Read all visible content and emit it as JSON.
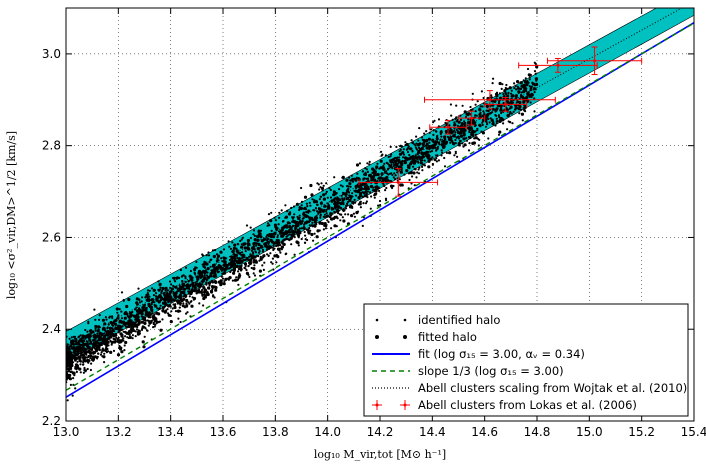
{
  "chart_data": {
    "type": "scatter",
    "xlabel": "log₁₀ M_vir,tot [M⊙ h⁻¹]",
    "ylabel": "log₁₀ <σ²_vir,DM>^1/2 [km/s]",
    "xlim": [
      13.0,
      15.4
    ],
    "ylim": [
      2.2,
      3.1
    ],
    "xticks": [
      "13.0",
      "13.2",
      "13.4",
      "13.6",
      "13.8",
      "14.0",
      "14.2",
      "14.4",
      "14.6",
      "14.8",
      "15.0",
      "15.2",
      "15.4"
    ],
    "yticks": [
      "2.2",
      "2.4",
      "2.6",
      "2.8",
      "3.0"
    ],
    "grid": true,
    "legend_position": "bottom-right",
    "colors": {
      "points": "#000000",
      "fit": "#0000ff",
      "slope": "#008000",
      "band": "#00c0c0",
      "abell": "#ff0000"
    },
    "series": [
      {
        "name": "identified halo",
        "kind": "scatter",
        "marker": "small-dot",
        "relation": {
          "x_start": 13.0,
          "x_end": 14.8,
          "y_at_start": 2.33,
          "slope": 0.3333,
          "scatter_dex": 0.025,
          "count": 2200
        }
      },
      {
        "name": "fitted halo",
        "kind": "scatter",
        "marker": "dot",
        "relation": {
          "x_start": 13.0,
          "x_end": 14.8,
          "y_at_start": 2.33,
          "slope": 0.3333,
          "scatter_dex": 0.02,
          "count": 900
        }
      },
      {
        "name": "fit (log σ₁₅ = 3.00, αᵥ = 0.34)",
        "kind": "line",
        "style": "solid",
        "x": [
          13.0,
          15.4
        ],
        "y": [
          2.252,
          3.068
        ]
      },
      {
        "name": "slope 1/3 (log σ₁₅ = 3.00)",
        "kind": "line",
        "style": "dashed",
        "x": [
          13.0,
          15.4
        ],
        "y": [
          2.267,
          3.067
        ]
      },
      {
        "name": "Abell clusters scaling from Wojtak et al. (2010)",
        "kind": "band",
        "style": "dotted",
        "x": [
          13.0,
          15.4
        ],
        "y_low": [
          2.33,
          3.084
        ],
        "y_high": [
          2.395,
          3.145
        ]
      },
      {
        "name": "Abell clusters from Lokas et al. (2006)",
        "kind": "errorbar",
        "points": [
          {
            "x": 14.27,
            "y": 2.72,
            "xerr": 0.15,
            "yerr": 0.03
          },
          {
            "x": 14.46,
            "y": 2.84,
            "xerr": 0.07,
            "yerr": 0.015
          },
          {
            "x": 14.55,
            "y": 2.86,
            "xerr": 0.05,
            "yerr": 0.015
          },
          {
            "x": 14.62,
            "y": 2.9,
            "xerr": 0.25,
            "yerr": 0.02
          },
          {
            "x": 14.68,
            "y": 2.89,
            "xerr": 0.08,
            "yerr": 0.015
          },
          {
            "x": 14.88,
            "y": 2.975,
            "xerr": 0.15,
            "yerr": 0.015
          },
          {
            "x": 15.02,
            "y": 2.985,
            "xerr": 0.18,
            "yerr": 0.03
          }
        ]
      }
    ]
  }
}
